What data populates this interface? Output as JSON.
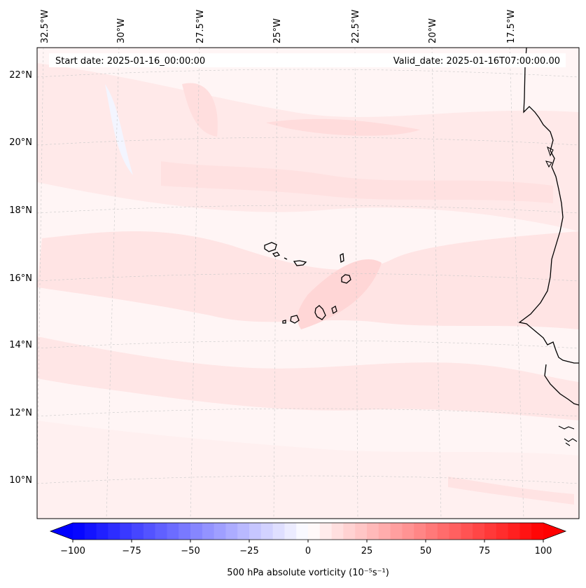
{
  "map": {
    "header": {
      "start_date": "Start date: 2025-01-16_00:00:00",
      "valid_date": "Valid_date: 2025-01-16T07:00:00.00"
    },
    "longitude_labels": [
      "32.5°W",
      "30°W",
      "27.5°W",
      "25°W",
      "22.5°W",
      "20°W",
      "17.5°W"
    ],
    "latitude_labels": [
      "22°N",
      "20°N",
      "18°N",
      "16°N",
      "14°N",
      "12°N",
      "10°N"
    ],
    "region": "Cabo Verde islands and West African coast (Senegal/Mauritania)",
    "field": "500 hPa absolute vorticity",
    "colorbar": {
      "label": "500 hPa absolute vorticity (10⁻⁵s⁻¹)",
      "ticks": [
        "−100",
        "−75",
        "−50",
        "−25",
        "0",
        "25",
        "50",
        "75",
        "100"
      ],
      "min": -100,
      "max": 100,
      "low_color": "#0000ff",
      "mid_color": "#ffffff",
      "high_color": "#ff0000"
    }
  }
}
